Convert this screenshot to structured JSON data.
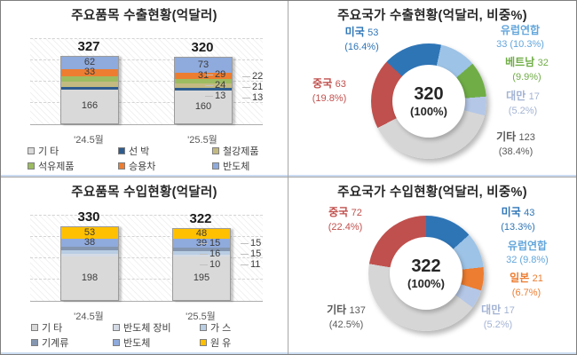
{
  "page": {
    "background": "#FFFFFF",
    "divider_color": "#A6A6A6"
  },
  "chart_data": [
    {
      "id": "export-items",
      "type": "bar",
      "stacked": true,
      "title": "주요품목 수출현황(억달러)",
      "categories": [
        "'24.5월",
        "'25.5월"
      ],
      "totals": [
        327,
        320
      ],
      "legend_position": "bottom",
      "grid": true,
      "series": [
        {
          "name": "기 타",
          "color": "#D9D9D9",
          "values": [
            166,
            160
          ],
          "labels": "inside"
        },
        {
          "name": "선 박",
          "color": "#2E5C8F",
          "values": [
            13,
            13
          ],
          "labels": "callout"
        },
        {
          "name": "철강제품",
          "color": "#C3BA82",
          "values": [
            24,
            21
          ],
          "labels": "callout"
        },
        {
          "name": "석유제품",
          "color": "#9DBB61",
          "values": [
            29,
            22
          ],
          "labels": "callout"
        },
        {
          "name": "승용차",
          "color": "#ED7D31",
          "values": [
            33,
            31
          ],
          "labels": "inside"
        },
        {
          "name": "반도체",
          "color": "#8FAADC",
          "values": [
            62,
            73
          ],
          "labels": "inside"
        }
      ]
    },
    {
      "id": "export-countries",
      "type": "donut",
      "title": "주요국가 수출현황(억달러, 비중%)",
      "center_value": "320",
      "center_share": "(100%)",
      "start_angle": -47,
      "slices": [
        {
          "name": "미국",
          "value": 53,
          "share": "16.4%",
          "color": "#2E75B6",
          "label_color": "#2E75B6"
        },
        {
          "name": "유럽연합",
          "value": 33,
          "share": "10.3%",
          "color": "#9DC3E6",
          "label_color": "#63A6DB"
        },
        {
          "name": "베트남",
          "value": 32,
          "share": "9.9%",
          "color": "#70AD47",
          "label_color": "#70AD47"
        },
        {
          "name": "대만",
          "value": 17,
          "share": "5.2%",
          "color": "#B4C7E7",
          "label_color": "#A3B3D3"
        },
        {
          "name": "기타",
          "value": 123,
          "share": "38.4%",
          "color": "#D6D6D6",
          "label_color": "#595959"
        },
        {
          "name": "중국",
          "value": 63,
          "share": "19.8%",
          "color": "#C0504D",
          "label_color": "#C0504D"
        }
      ]
    },
    {
      "id": "import-items",
      "type": "bar",
      "stacked": true,
      "title": "주요품목 수입현황(억달러)",
      "categories": [
        "'24.5월",
        "'25.5월"
      ],
      "totals": [
        330,
        322
      ],
      "legend_position": "bottom",
      "grid": true,
      "series": [
        {
          "name": "기 타",
          "color": "#D9D9D9",
          "values": [
            198,
            195
          ],
          "labels": "inside"
        },
        {
          "name": "반도체 장비",
          "color": "#D5DBE5",
          "values": [
            10,
            11
          ],
          "labels": "callout"
        },
        {
          "name": "가 스",
          "color": "#B9CDE3",
          "values": [
            16,
            15
          ],
          "labels": "callout"
        },
        {
          "name": "기계류",
          "color": "#8496B0",
          "values": [
            15,
            15
          ],
          "labels": "callout"
        },
        {
          "name": "반도체",
          "color": "#8FAADC",
          "values": [
            38,
            39
          ],
          "labels": "inside"
        },
        {
          "name": "원 유",
          "color": "#FFC000",
          "values": [
            53,
            48
          ],
          "labels": "inside"
        }
      ]
    },
    {
      "id": "import-countries",
      "type": "donut",
      "title": "주요국가 수입현황(억달러, 비중%)",
      "center_value": "322",
      "center_share": "(100%)",
      "start_angle": 0,
      "slices": [
        {
          "name": "미국",
          "value": 43,
          "share": "13.3%",
          "color": "#2E75B6",
          "label_color": "#2E75B6"
        },
        {
          "name": "유럽연합",
          "value": 32,
          "share": "9.8%",
          "color": "#9DC3E6",
          "label_color": "#63A6DB"
        },
        {
          "name": "일본",
          "value": 21,
          "share": "6.7%",
          "color": "#ED7D31",
          "label_color": "#ED7D31"
        },
        {
          "name": "대만",
          "value": 17,
          "share": "5.2%",
          "color": "#B4C7E7",
          "label_color": "#A3B3D3"
        },
        {
          "name": "기타",
          "value": 137,
          "share": "42.5%",
          "color": "#D6D6D6",
          "label_color": "#595959"
        },
        {
          "name": "중국",
          "value": 72,
          "share": "22.4%",
          "color": "#C0504D",
          "label_color": "#C0504D"
        }
      ]
    }
  ]
}
